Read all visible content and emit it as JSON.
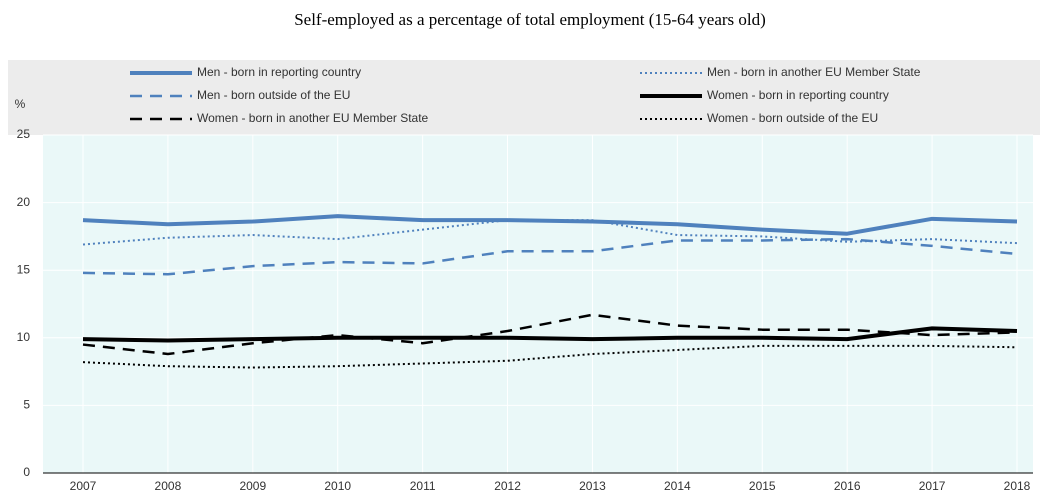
{
  "chart_data": {
    "type": "line",
    "title": "Self-employed as a percentage of total employment (15-64 years old)",
    "ylabel": "%",
    "categories": [
      "2007",
      "2008",
      "2009",
      "2010",
      "2011",
      "2012",
      "2013",
      "2014",
      "2015",
      "2016",
      "2017",
      "2018"
    ],
    "ylim": [
      0,
      25
    ],
    "yticks": [
      0,
      5,
      10,
      15,
      20,
      25
    ],
    "grid": true,
    "legend": "top",
    "series": [
      {
        "name": "Men - born in reporting country",
        "color": "#4f81bd",
        "style": "solid",
        "values": [
          18.7,
          18.4,
          18.6,
          19.0,
          18.7,
          18.7,
          18.6,
          18.4,
          18.0,
          17.7,
          18.8,
          18.6
        ]
      },
      {
        "name": "Men - born in another EU Member State",
        "color": "#4f81bd",
        "style": "dotted",
        "values": [
          16.9,
          17.4,
          17.6,
          17.3,
          18.0,
          18.7,
          18.7,
          17.6,
          17.5,
          17.1,
          17.3,
          17.0
        ]
      },
      {
        "name": "Men - born outside of the EU",
        "color": "#4f81bd",
        "style": "dashed",
        "values": [
          14.8,
          14.7,
          15.3,
          15.6,
          15.5,
          16.4,
          16.4,
          17.2,
          17.2,
          17.3,
          16.8,
          16.2
        ]
      },
      {
        "name": "Women - born in reporting country",
        "color": "#000000",
        "style": "solid",
        "values": [
          9.9,
          9.8,
          9.9,
          10.0,
          10.0,
          10.0,
          9.9,
          10.0,
          10.0,
          9.9,
          10.7,
          10.5
        ]
      },
      {
        "name": "Women - born in another EU Member State",
        "color": "#000000",
        "style": "dashed",
        "values": [
          9.5,
          8.8,
          9.6,
          10.2,
          9.6,
          10.5,
          11.7,
          10.9,
          10.6,
          10.6,
          10.2,
          10.4
        ]
      },
      {
        "name": "Women - born outside of the EU",
        "color": "#000000",
        "style": "dotted",
        "values": [
          8.2,
          7.9,
          7.8,
          7.9,
          8.1,
          8.3,
          8.8,
          9.1,
          9.4,
          9.4,
          9.4,
          9.3
        ]
      }
    ]
  }
}
